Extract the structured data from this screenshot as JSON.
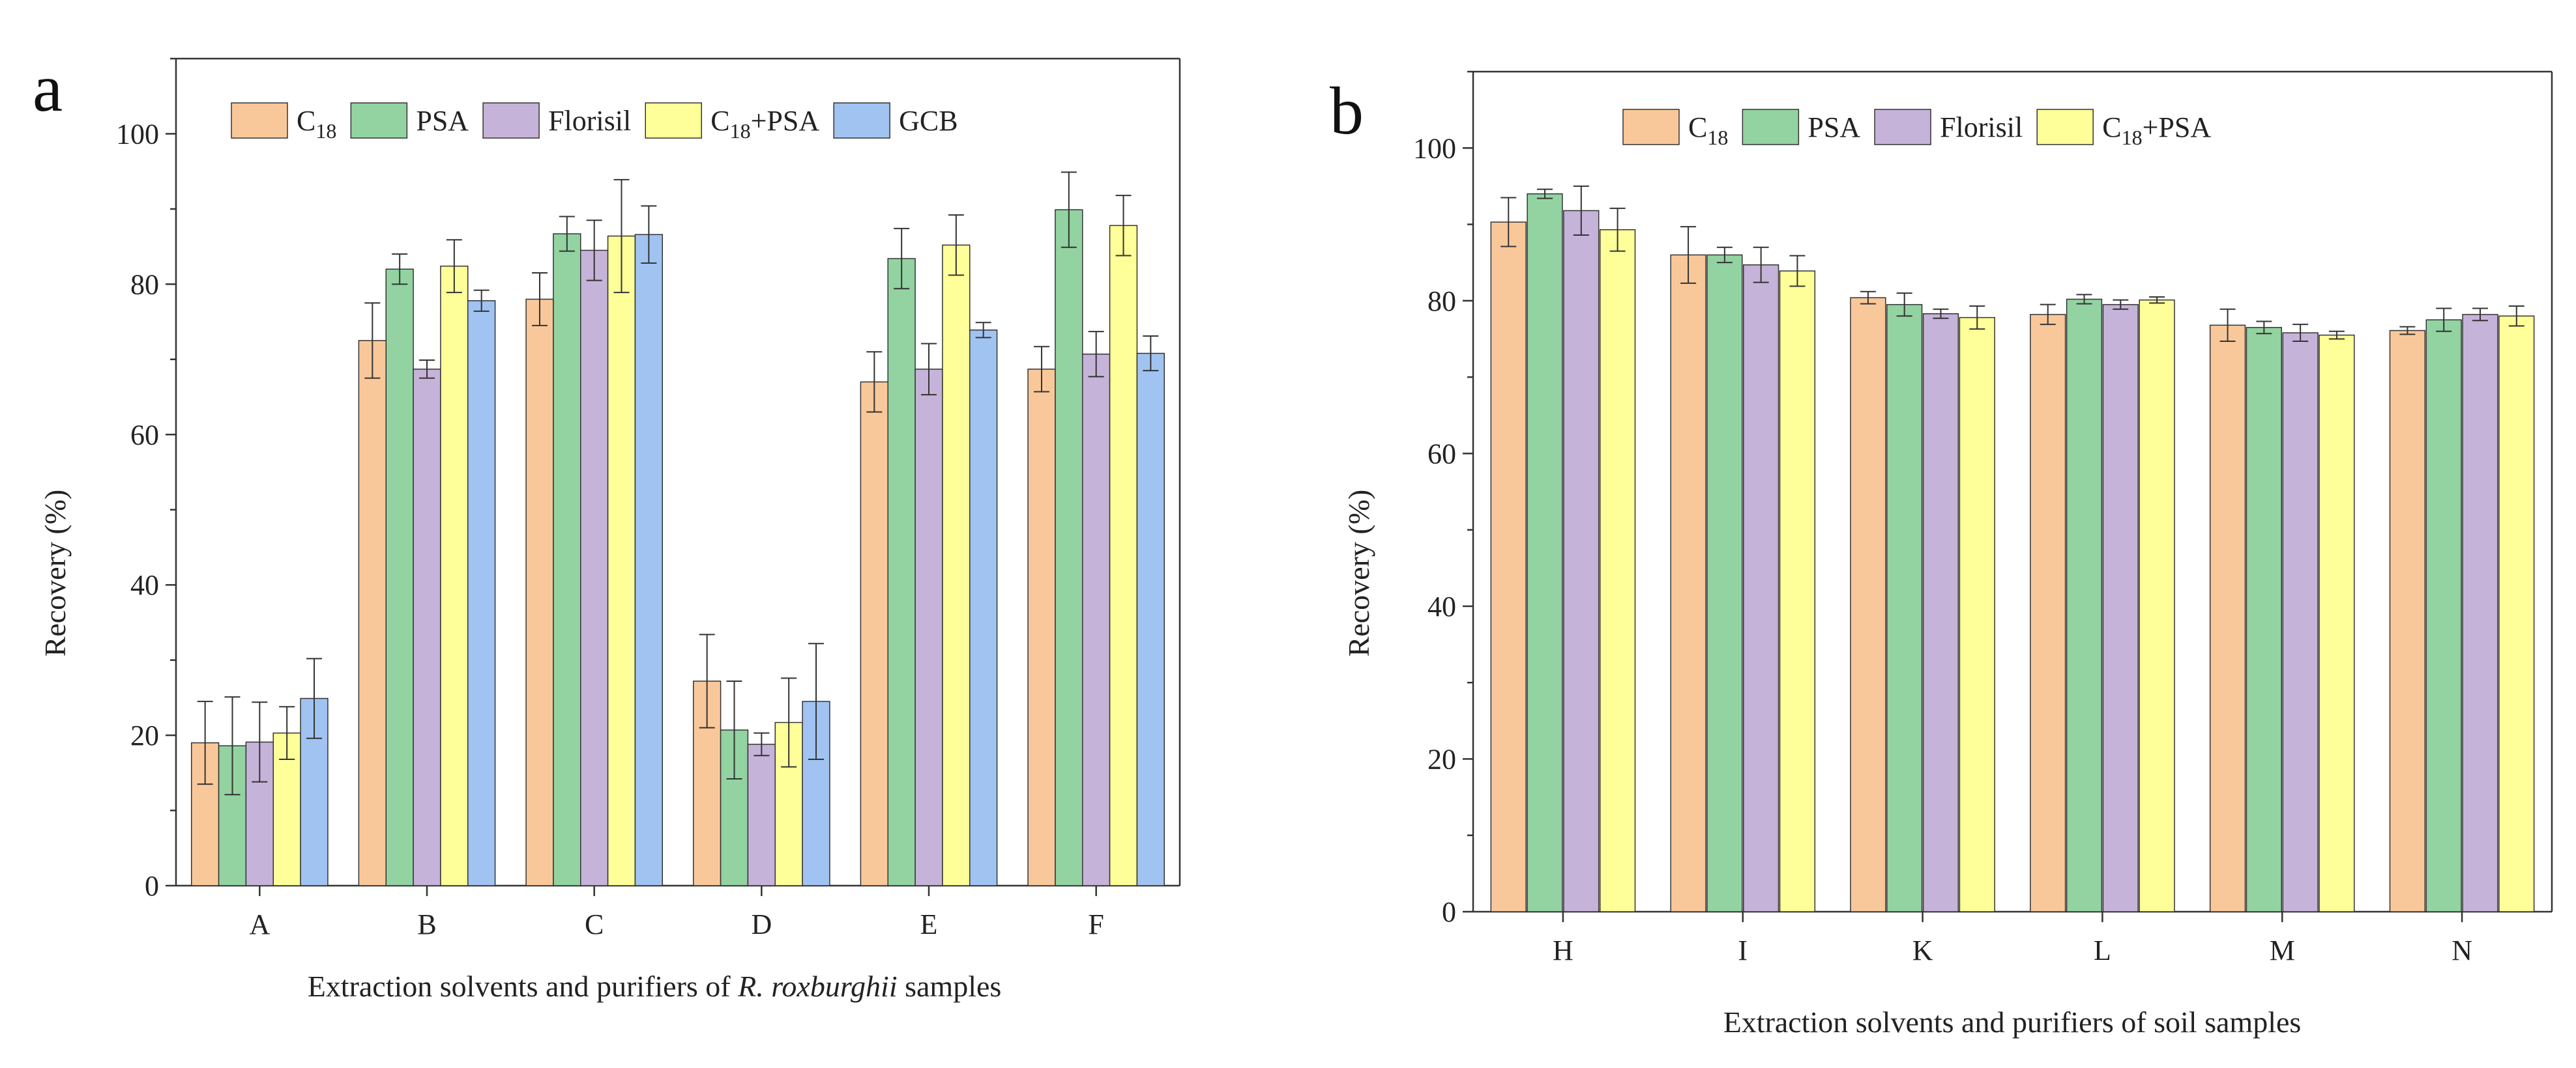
{
  "panels": [
    {
      "letter": "a",
      "title": "",
      "xlabel_prefix": "Extraction solvents and purifiers  of ",
      "xlabel_italic": "R. roxburghii",
      "xlabel_suffix": " samples",
      "ylabel": "Recovery (%)"
    },
    {
      "letter": "b",
      "title": "",
      "xlabel_prefix": "Extraction solvents and purifiers  of  soil samples",
      "xlabel_italic": "",
      "xlabel_suffix": "",
      "ylabel": "Recovery (%)"
    }
  ],
  "colors": {
    "C18": "#f9c89a",
    "PSA": "#92d3a1",
    "Florisil": "#c6b3d9",
    "C18+PSA": "#ffff99",
    "GCB": "#a0c3f2"
  },
  "chart_data": [
    {
      "type": "bar",
      "title": "",
      "xlabel": "Extraction solvents and purifiers  of R. roxburghii samples",
      "ylabel": "Recovery (%)",
      "ylim": [
        0,
        110
      ],
      "yticks": [
        0,
        20,
        40,
        60,
        80,
        100
      ],
      "categories": [
        "A",
        "B",
        "C",
        "D",
        "E",
        "F"
      ],
      "legend_position": "top",
      "series": [
        {
          "name": "C18",
          "label_main": "C",
          "label_sub": "18",
          "color_key": "C18",
          "values": [
            19,
            72.5,
            78,
            27.2,
            67,
            68.7
          ],
          "errors": [
            5.5,
            5,
            3.5,
            6.2,
            4,
            3
          ]
        },
        {
          "name": "PSA",
          "label_main": "PSA",
          "label_sub": "",
          "color_key": "PSA",
          "values": [
            18.6,
            82,
            86.7,
            20.7,
            83.4,
            89.9
          ],
          "errors": [
            6.5,
            2,
            2.3,
            6.5,
            4,
            5
          ]
        },
        {
          "name": "Florisil",
          "label_main": "Florisil",
          "label_sub": "",
          "color_key": "Florisil",
          "values": [
            19.1,
            68.7,
            84.5,
            18.8,
            68.7,
            70.7
          ],
          "errors": [
            5.3,
            1.2,
            4,
            1.5,
            3.4,
            3
          ]
        },
        {
          "name": "C18+PSA",
          "label_main": "C",
          "label_sub": "18",
          "label_tail": "+PSA",
          "color_key": "C18+PSA",
          "values": [
            20.3,
            82.4,
            86.4,
            21.7,
            85.2,
            87.8
          ],
          "errors": [
            3.5,
            3.5,
            7.5,
            5.9,
            4,
            4
          ]
        },
        {
          "name": "GCB",
          "label_main": "GCB",
          "label_sub": "",
          "color_key": "GCB",
          "values": [
            24.9,
            77.8,
            86.6,
            24.5,
            73.9,
            70.8
          ],
          "errors": [
            5.3,
            1.4,
            3.8,
            7.7,
            1,
            2.3
          ]
        }
      ]
    },
    {
      "type": "bar",
      "title": "",
      "xlabel": "Extraction solvents and purifiers  of  soil samples",
      "ylabel": "Recovery (%)",
      "ylim": [
        0,
        110
      ],
      "yticks": [
        0,
        20,
        40,
        60,
        80,
        100
      ],
      "categories": [
        "H",
        "I",
        "K",
        "L",
        "M",
        "N"
      ],
      "legend_position": "top",
      "series": [
        {
          "name": "C18",
          "label_main": "C",
          "label_sub": "18",
          "color_key": "C18",
          "values": [
            90.3,
            86,
            80.4,
            78.2,
            76.8,
            76.1
          ],
          "errors": [
            3.2,
            3.7,
            0.8,
            1.3,
            2.1,
            0.5
          ]
        },
        {
          "name": "PSA",
          "label_main": "PSA",
          "label_sub": "",
          "color_key": "PSA",
          "values": [
            94,
            86,
            79.5,
            80.2,
            76.5,
            77.5
          ],
          "errors": [
            0.6,
            1,
            1.5,
            0.6,
            0.8,
            1.5
          ]
        },
        {
          "name": "Florisil",
          "label_main": "Florisil",
          "label_sub": "",
          "color_key": "Florisil",
          "values": [
            91.8,
            84.7,
            78.3,
            79.5,
            75.8,
            78.2
          ],
          "errors": [
            3.2,
            2.3,
            0.6,
            0.6,
            1.1,
            0.8
          ]
        },
        {
          "name": "C18+PSA",
          "label_main": "C",
          "label_sub": "18",
          "label_tail": "+PSA",
          "color_key": "C18+PSA",
          "values": [
            89.3,
            83.9,
            77.8,
            80.1,
            75.5,
            78
          ],
          "errors": [
            2.8,
            2,
            1.5,
            0.4,
            0.5,
            1.3
          ]
        }
      ]
    }
  ]
}
